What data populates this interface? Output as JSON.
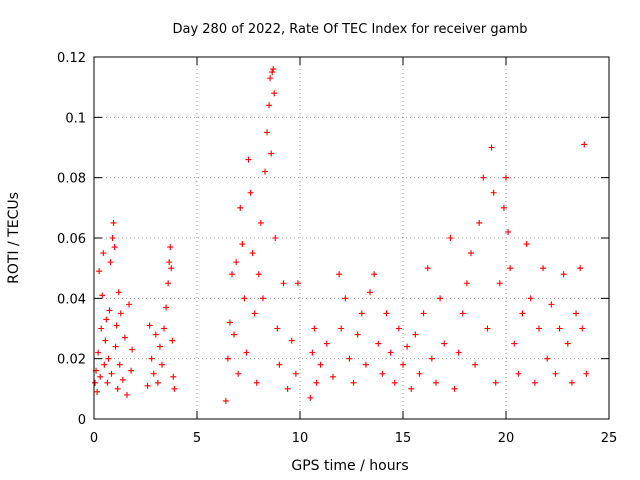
{
  "chart_data": {
    "type": "scatter",
    "title": "Day 280 of 2022, Rate Of TEC Index for receiver gamb",
    "xlabel": "GPS time / hours",
    "ylabel": "ROTI / TECUs",
    "xlim": [
      0,
      25
    ],
    "ylim": [
      0,
      0.12
    ],
    "x_ticks": [
      "0",
      "5",
      "10",
      "15",
      "20",
      "25"
    ],
    "y_ticks": [
      "0",
      "0.02",
      "0.04",
      "0.06",
      "0.08",
      "0.1",
      "0.12"
    ],
    "grid": true,
    "marker": "plus",
    "color": "#ff0000",
    "series": [
      {
        "points": [
          [
            0.05,
            0.012
          ],
          [
            0.1,
            0.016
          ],
          [
            0.15,
            0.009
          ],
          [
            0.2,
            0.022
          ],
          [
            0.25,
            0.049
          ],
          [
            0.3,
            0.014
          ],
          [
            0.35,
            0.03
          ],
          [
            0.4,
            0.041
          ],
          [
            0.45,
            0.055
          ],
          [
            0.5,
            0.018
          ],
          [
            0.55,
            0.026
          ],
          [
            0.6,
            0.033
          ],
          [
            0.65,
            0.012
          ],
          [
            0.7,
            0.02
          ],
          [
            0.75,
            0.036
          ],
          [
            0.8,
            0.052
          ],
          [
            0.85,
            0.015
          ],
          [
            0.9,
            0.06
          ],
          [
            0.95,
            0.065
          ],
          [
            1.0,
            0.057
          ],
          [
            1.05,
            0.024
          ],
          [
            1.1,
            0.031
          ],
          [
            1.15,
            0.01
          ],
          [
            1.2,
            0.042
          ],
          [
            1.25,
            0.018
          ],
          [
            1.3,
            0.035
          ],
          [
            1.4,
            0.013
          ],
          [
            1.5,
            0.027
          ],
          [
            1.6,
            0.008
          ],
          [
            1.7,
            0.038
          ],
          [
            1.8,
            0.016
          ],
          [
            1.85,
            0.023
          ],
          [
            2.6,
            0.011
          ],
          [
            2.7,
            0.031
          ],
          [
            2.8,
            0.02
          ],
          [
            2.9,
            0.015
          ],
          [
            3.0,
            0.028
          ],
          [
            3.1,
            0.012
          ],
          [
            3.2,
            0.024
          ],
          [
            3.3,
            0.018
          ],
          [
            3.4,
            0.03
          ],
          [
            3.5,
            0.037
          ],
          [
            3.6,
            0.045
          ],
          [
            3.65,
            0.052
          ],
          [
            3.7,
            0.057
          ],
          [
            3.75,
            0.05
          ],
          [
            3.8,
            0.026
          ],
          [
            3.85,
            0.014
          ],
          [
            3.9,
            0.01
          ],
          [
            6.4,
            0.006
          ],
          [
            6.5,
            0.02
          ],
          [
            6.6,
            0.032
          ],
          [
            6.7,
            0.048
          ],
          [
            6.8,
            0.028
          ],
          [
            6.9,
            0.052
          ],
          [
            7.0,
            0.015
          ],
          [
            7.1,
            0.07
          ],
          [
            7.2,
            0.058
          ],
          [
            7.3,
            0.04
          ],
          [
            7.4,
            0.022
          ],
          [
            7.5,
            0.086
          ],
          [
            7.6,
            0.075
          ],
          [
            7.7,
            0.055
          ],
          [
            7.8,
            0.035
          ],
          [
            7.9,
            0.012
          ],
          [
            8.0,
            0.048
          ],
          [
            8.1,
            0.065
          ],
          [
            8.2,
            0.04
          ],
          [
            8.3,
            0.082
          ],
          [
            8.4,
            0.095
          ],
          [
            8.5,
            0.104
          ],
          [
            8.55,
            0.113
          ],
          [
            8.6,
            0.088
          ],
          [
            8.65,
            0.115
          ],
          [
            8.7,
            0.116
          ],
          [
            8.75,
            0.108
          ],
          [
            8.8,
            0.06
          ],
          [
            8.9,
            0.03
          ],
          [
            9.0,
            0.018
          ],
          [
            9.2,
            0.045
          ],
          [
            9.4,
            0.01
          ],
          [
            9.6,
            0.026
          ],
          [
            9.8,
            0.015
          ],
          [
            9.9,
            0.045
          ],
          [
            10.5,
            0.007
          ],
          [
            10.6,
            0.022
          ],
          [
            10.7,
            0.03
          ],
          [
            10.8,
            0.012
          ],
          [
            11.0,
            0.018
          ],
          [
            11.3,
            0.025
          ],
          [
            11.6,
            0.014
          ],
          [
            11.9,
            0.048
          ],
          [
            12.0,
            0.03
          ],
          [
            12.2,
            0.04
          ],
          [
            12.4,
            0.02
          ],
          [
            12.6,
            0.012
          ],
          [
            12.8,
            0.028
          ],
          [
            13.0,
            0.035
          ],
          [
            13.2,
            0.018
          ],
          [
            13.4,
            0.042
          ],
          [
            13.6,
            0.048
          ],
          [
            13.8,
            0.025
          ],
          [
            14.0,
            0.015
          ],
          [
            14.2,
            0.035
          ],
          [
            14.4,
            0.022
          ],
          [
            14.6,
            0.012
          ],
          [
            14.8,
            0.03
          ],
          [
            15.0,
            0.018
          ],
          [
            15.2,
            0.024
          ],
          [
            15.4,
            0.01
          ],
          [
            15.6,
            0.028
          ],
          [
            15.8,
            0.015
          ],
          [
            16.0,
            0.035
          ],
          [
            16.2,
            0.05
          ],
          [
            16.4,
            0.02
          ],
          [
            16.6,
            0.012
          ],
          [
            16.8,
            0.04
          ],
          [
            17.0,
            0.025
          ],
          [
            17.3,
            0.06
          ],
          [
            17.5,
            0.01
          ],
          [
            17.7,
            0.022
          ],
          [
            17.9,
            0.035
          ],
          [
            18.1,
            0.045
          ],
          [
            18.3,
            0.055
          ],
          [
            18.5,
            0.018
          ],
          [
            18.7,
            0.065
          ],
          [
            18.9,
            0.08
          ],
          [
            19.1,
            0.03
          ],
          [
            19.3,
            0.09
          ],
          [
            19.4,
            0.075
          ],
          [
            19.5,
            0.012
          ],
          [
            19.7,
            0.045
          ],
          [
            19.9,
            0.07
          ],
          [
            20.0,
            0.08
          ],
          [
            20.1,
            0.062
          ],
          [
            20.2,
            0.05
          ],
          [
            20.4,
            0.025
          ],
          [
            20.6,
            0.015
          ],
          [
            20.8,
            0.035
          ],
          [
            21.0,
            0.058
          ],
          [
            21.2,
            0.04
          ],
          [
            21.4,
            0.012
          ],
          [
            21.6,
            0.03
          ],
          [
            21.8,
            0.05
          ],
          [
            22.0,
            0.02
          ],
          [
            22.2,
            0.038
          ],
          [
            22.4,
            0.015
          ],
          [
            22.6,
            0.03
          ],
          [
            22.8,
            0.048
          ],
          [
            23.0,
            0.025
          ],
          [
            23.2,
            0.012
          ],
          [
            23.4,
            0.035
          ],
          [
            23.6,
            0.05
          ],
          [
            23.7,
            0.03
          ],
          [
            23.8,
            0.091
          ],
          [
            23.9,
            0.015
          ]
        ]
      }
    ]
  }
}
